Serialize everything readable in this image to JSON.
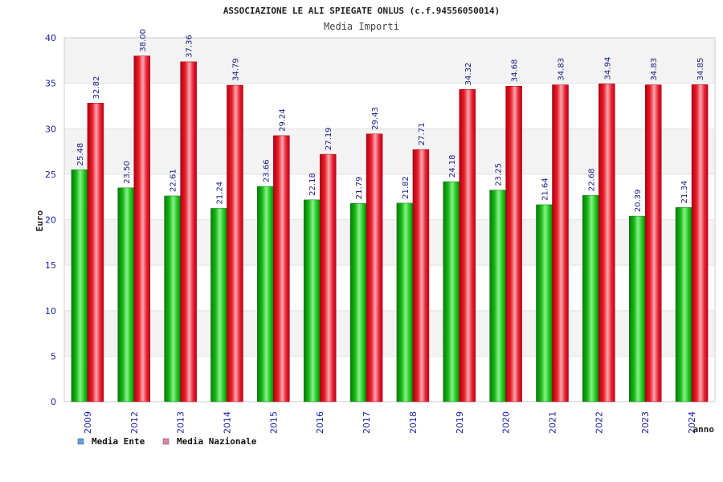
{
  "chart_data": {
    "type": "bar",
    "title": "ASSOCIAZIONE LE ALI SPIEGATE ONLUS (c.f.94556050014)",
    "subtitle": "Media Importi",
    "ylabel": "Euro",
    "xlabel": "anno",
    "ylim": [
      0,
      40
    ],
    "yticks": [
      0,
      5,
      10,
      15,
      20,
      25,
      30,
      35,
      40
    ],
    "grid": true,
    "legend_position": "bottom-left",
    "categories": [
      "2009",
      "2012",
      "2013",
      "2014",
      "2015",
      "2016",
      "2017",
      "2018",
      "2019",
      "2020",
      "2021",
      "2022",
      "2023",
      "2024"
    ],
    "series": [
      {
        "name": "Media Ente",
        "color": "#1fc81f",
        "legend_color": "#5aa0e6",
        "values": [
          25.48,
          23.5,
          22.61,
          21.24,
          23.66,
          22.18,
          21.79,
          21.82,
          24.18,
          23.25,
          21.64,
          22.68,
          20.39,
          21.34
        ],
        "labels": [
          "25.48",
          "23.50",
          "22.61",
          "21.24",
          "23.66",
          "22.18",
          "21.79",
          "21.82",
          "24.18",
          "23.25",
          "21.64",
          "22.68",
          "20.39",
          "21.34"
        ]
      },
      {
        "name": "Media Nazionale",
        "color": "#e8202a",
        "legend_color": "#e080b0",
        "values": [
          32.82,
          38.0,
          37.36,
          34.79,
          29.24,
          27.19,
          29.43,
          27.71,
          34.32,
          34.68,
          34.83,
          34.94,
          34.83,
          34.85
        ],
        "labels": [
          "32.82",
          "38.00",
          "37.36",
          "34.79",
          "29.24",
          "27.19",
          "29.43",
          "27.71",
          "34.32",
          "34.68",
          "34.83",
          "34.94",
          "34.83",
          "34.85"
        ]
      }
    ]
  }
}
